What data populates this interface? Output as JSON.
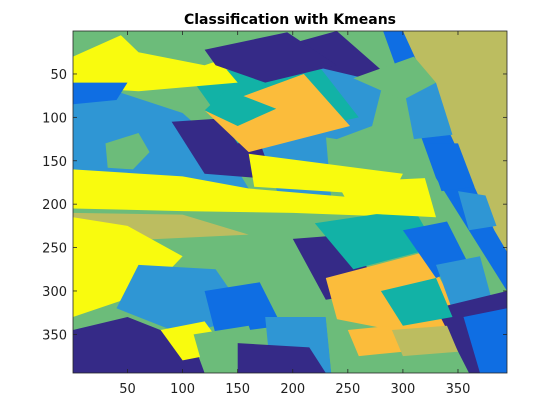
{
  "chart_data": {
    "type": "heatmap",
    "title": "Classification with Kmeans",
    "xlabel": "",
    "ylabel": "",
    "x_ticks": [
      "50",
      "100",
      "150",
      "200",
      "250",
      "300",
      "350"
    ],
    "y_ticks": [
      "50",
      "100",
      "150",
      "200",
      "250",
      "300",
      "350"
    ],
    "x_tick_values": [
      50,
      100,
      150,
      200,
      250,
      300,
      350
    ],
    "y_tick_values": [
      50,
      100,
      150,
      200,
      250,
      300,
      350
    ],
    "xlim": [
      0.5,
      394.5
    ],
    "ylim": [
      0.5,
      394.5
    ],
    "y_direction": "reverse",
    "grid": false,
    "colormap": "parula",
    "classes": [
      {
        "id": 1,
        "color": "#352a87"
      },
      {
        "id": 2,
        "color": "#0f6ee3"
      },
      {
        "id": 3,
        "color": "#2f96d4"
      },
      {
        "id": 4,
        "color": "#12b2a6"
      },
      {
        "id": 5,
        "color": "#6cbc7a"
      },
      {
        "id": 6,
        "color": "#bcbd60"
      },
      {
        "id": 7,
        "color": "#fbbc3b"
      },
      {
        "id": 8,
        "color": "#f9fb0e"
      }
    ],
    "regions": [
      {
        "class": 5,
        "points": [
          [
            0.5,
            0.5
          ],
          [
            394.5,
            0.5
          ],
          [
            394.5,
            394.5
          ],
          [
            0.5,
            394.5
          ]
        ]
      },
      {
        "class": 6,
        "points": [
          [
            282,
            0.5
          ],
          [
            394.5,
            0.5
          ],
          [
            394.5,
            258
          ],
          [
            372,
            208
          ]
        ]
      },
      {
        "class": 2,
        "points": [
          [
            282,
            0.5
          ],
          [
            300,
            0.5
          ],
          [
            383,
            230
          ],
          [
            394.5,
            255
          ],
          [
            394.5,
            300
          ],
          [
            330,
            170
          ]
        ]
      },
      {
        "class": 1,
        "points": [
          [
            170,
            25
          ],
          [
            240,
            0.5
          ],
          [
            280,
            45
          ],
          [
            265,
            60
          ],
          [
            215,
            40
          ],
          [
            190,
            50
          ]
        ]
      },
      {
        "class": 3,
        "points": [
          [
            190,
            50
          ],
          [
            215,
            40
          ],
          [
            282,
            60
          ],
          [
            272,
            110
          ],
          [
            240,
            125
          ],
          [
            205,
            118
          ]
        ]
      },
      {
        "class": 3,
        "points": [
          [
            0.5,
            75
          ],
          [
            40,
            70
          ],
          [
            100,
            95
          ],
          [
            140,
            140
          ],
          [
            160,
            182
          ],
          [
            0.5,
            182
          ]
        ]
      },
      {
        "class": 5,
        "points": [
          [
            30,
            130
          ],
          [
            60,
            118
          ],
          [
            70,
            140
          ],
          [
            55,
            160
          ],
          [
            32,
            158
          ]
        ]
      },
      {
        "class": 1,
        "points": [
          [
            90,
            105
          ],
          [
            150,
            100
          ],
          [
            185,
            150
          ],
          [
            170,
            170
          ],
          [
            120,
            165
          ]
        ]
      },
      {
        "class": 3,
        "points": [
          [
            165,
            110
          ],
          [
            230,
            120
          ],
          [
            235,
            195
          ],
          [
            190,
            200
          ]
        ]
      },
      {
        "class": 4,
        "points": [
          [
            105,
            50
          ],
          [
            220,
            35
          ],
          [
            260,
            100
          ],
          [
            150,
            130
          ]
        ]
      },
      {
        "class": 7,
        "points": [
          [
            120,
            92
          ],
          [
            210,
            50
          ],
          [
            252,
            110
          ],
          [
            160,
            140
          ]
        ]
      },
      {
        "class": 4,
        "points": [
          [
            120,
            92
          ],
          [
            140,
            68
          ],
          [
            185,
            90
          ],
          [
            150,
            110
          ]
        ]
      },
      {
        "class": 8,
        "points": [
          [
            160,
            142
          ],
          [
            300,
            165
          ],
          [
            290,
            190
          ],
          [
            165,
            180
          ]
        ]
      },
      {
        "class": 8,
        "points": [
          [
            0.5,
            160
          ],
          [
            100,
            168
          ],
          [
            160,
            182
          ],
          [
            280,
            195
          ],
          [
            282,
            214
          ],
          [
            200,
            210
          ],
          [
            100,
            208
          ],
          [
            0.5,
            205
          ]
        ]
      },
      {
        "class": 8,
        "points": [
          [
            50,
            2
          ],
          [
            130,
            30
          ],
          [
            150,
            60
          ],
          [
            60,
            70
          ],
          [
            0.5,
            65
          ],
          [
            0.5,
            30
          ]
        ]
      },
      {
        "class": 5,
        "points": [
          [
            40,
            0.5
          ],
          [
            130,
            0.5
          ],
          [
            155,
            25
          ],
          [
            120,
            40
          ],
          [
            60,
            25
          ]
        ]
      },
      {
        "class": 1,
        "points": [
          [
            120,
            22
          ],
          [
            195,
            2
          ],
          [
            240,
            40
          ],
          [
            175,
            60
          ],
          [
            130,
            40
          ]
        ]
      },
      {
        "class": 6,
        "points": [
          [
            0.5,
            210
          ],
          [
            100,
            212
          ],
          [
            160,
            235
          ],
          [
            0.5,
            245
          ]
        ]
      },
      {
        "class": 5,
        "points": [
          [
            160,
            250
          ],
          [
            240,
            245
          ],
          [
            260,
            290
          ],
          [
            200,
            300
          ],
          [
            150,
            280
          ]
        ]
      },
      {
        "class": 1,
        "points": [
          [
            200,
            240
          ],
          [
            250,
            235
          ],
          [
            280,
            300
          ],
          [
            230,
            310
          ]
        ]
      },
      {
        "class": 4,
        "points": [
          [
            220,
            222
          ],
          [
            310,
            205
          ],
          [
            330,
            250
          ],
          [
            255,
            275
          ]
        ]
      },
      {
        "class": 7,
        "points": [
          [
            230,
            285
          ],
          [
            320,
            255
          ],
          [
            340,
            300
          ],
          [
            355,
            340
          ],
          [
            300,
            355
          ],
          [
            245,
            355
          ]
        ]
      },
      {
        "class": 2,
        "points": [
          [
            300,
            230
          ],
          [
            340,
            220
          ],
          [
            360,
            270
          ],
          [
            330,
            285
          ]
        ]
      },
      {
        "class": 3,
        "points": [
          [
            330,
            270
          ],
          [
            370,
            260
          ],
          [
            385,
            330
          ],
          [
            350,
            340
          ]
        ]
      },
      {
        "class": 1,
        "points": [
          [
            330,
            320
          ],
          [
            394.5,
            300
          ],
          [
            394.5,
            394.5
          ],
          [
            360,
            394.5
          ]
        ]
      },
      {
        "class": 2,
        "points": [
          [
            355,
            330
          ],
          [
            394.5,
            320
          ],
          [
            394.5,
            394.5
          ],
          [
            370,
            394.5
          ]
        ]
      },
      {
        "class": 8,
        "points": [
          [
            0.5,
            215
          ],
          [
            50,
            225
          ],
          [
            100,
            260
          ],
          [
            70,
            300
          ],
          [
            0.5,
            330
          ]
        ]
      },
      {
        "class": 3,
        "points": [
          [
            60,
            270
          ],
          [
            130,
            275
          ],
          [
            160,
            330
          ],
          [
            100,
            350
          ],
          [
            40,
            320
          ]
        ]
      },
      {
        "class": 5,
        "points": [
          [
            0.5,
            330
          ],
          [
            60,
            335
          ],
          [
            110,
            370
          ],
          [
            80,
            394.5
          ],
          [
            0.5,
            394.5
          ]
        ]
      },
      {
        "class": 1,
        "points": [
          [
            0.5,
            345
          ],
          [
            50,
            330
          ],
          [
            110,
            360
          ],
          [
            120,
            394.5
          ],
          [
            0.5,
            394.5
          ]
        ]
      },
      {
        "class": 8,
        "points": [
          [
            80,
            345
          ],
          [
            120,
            335
          ],
          [
            140,
            370
          ],
          [
            100,
            380
          ]
        ]
      },
      {
        "class": 2,
        "points": [
          [
            120,
            300
          ],
          [
            170,
            290
          ],
          [
            190,
            340
          ],
          [
            130,
            350
          ]
        ]
      },
      {
        "class": 5,
        "points": [
          [
            110,
            350
          ],
          [
            160,
            340
          ],
          [
            175,
            394.5
          ],
          [
            120,
            394.5
          ]
        ]
      },
      {
        "class": 3,
        "points": [
          [
            175,
            330
          ],
          [
            230,
            330
          ],
          [
            235,
            394.5
          ],
          [
            180,
            394.5
          ]
        ]
      },
      {
        "class": 1,
        "points": [
          [
            150,
            360
          ],
          [
            215,
            365
          ],
          [
            230,
            394.5
          ],
          [
            150,
            394.5
          ]
        ]
      },
      {
        "class": 5,
        "points": [
          [
            230,
            330
          ],
          [
            290,
            345
          ],
          [
            300,
            394.5
          ],
          [
            235,
            394.5
          ]
        ]
      },
      {
        "class": 7,
        "points": [
          [
            250,
            345
          ],
          [
            290,
            340
          ],
          [
            300,
            370
          ],
          [
            260,
            375
          ]
        ]
      },
      {
        "class": 6,
        "points": [
          [
            290,
            345
          ],
          [
            340,
            340
          ],
          [
            350,
            370
          ],
          [
            300,
            375
          ]
        ]
      },
      {
        "class": 4,
        "points": [
          [
            280,
            300
          ],
          [
            330,
            285
          ],
          [
            345,
            330
          ],
          [
            300,
            340
          ]
        ]
      },
      {
        "class": 8,
        "points": [
          [
            240,
            175
          ],
          [
            320,
            170
          ],
          [
            330,
            215
          ],
          [
            255,
            210
          ]
        ]
      },
      {
        "class": 3,
        "points": [
          [
            300,
            60
          ],
          [
            330,
            60
          ],
          [
            345,
            120
          ],
          [
            310,
            125
          ]
        ]
      },
      {
        "class": 5,
        "points": [
          [
            255,
            55
          ],
          [
            310,
            30
          ],
          [
            330,
            60
          ],
          [
            300,
            80
          ]
        ]
      },
      {
        "class": 2,
        "points": [
          [
            320,
            130
          ],
          [
            350,
            130
          ],
          [
            365,
            180
          ],
          [
            335,
            185
          ]
        ]
      },
      {
        "class": 3,
        "points": [
          [
            350,
            185
          ],
          [
            375,
            190
          ],
          [
            385,
            225
          ],
          [
            360,
            230
          ]
        ]
      },
      {
        "class": 2,
        "points": [
          [
            0.5,
            60
          ],
          [
            50,
            60
          ],
          [
            40,
            80
          ],
          [
            0.5,
            85
          ]
        ]
      }
    ]
  }
}
